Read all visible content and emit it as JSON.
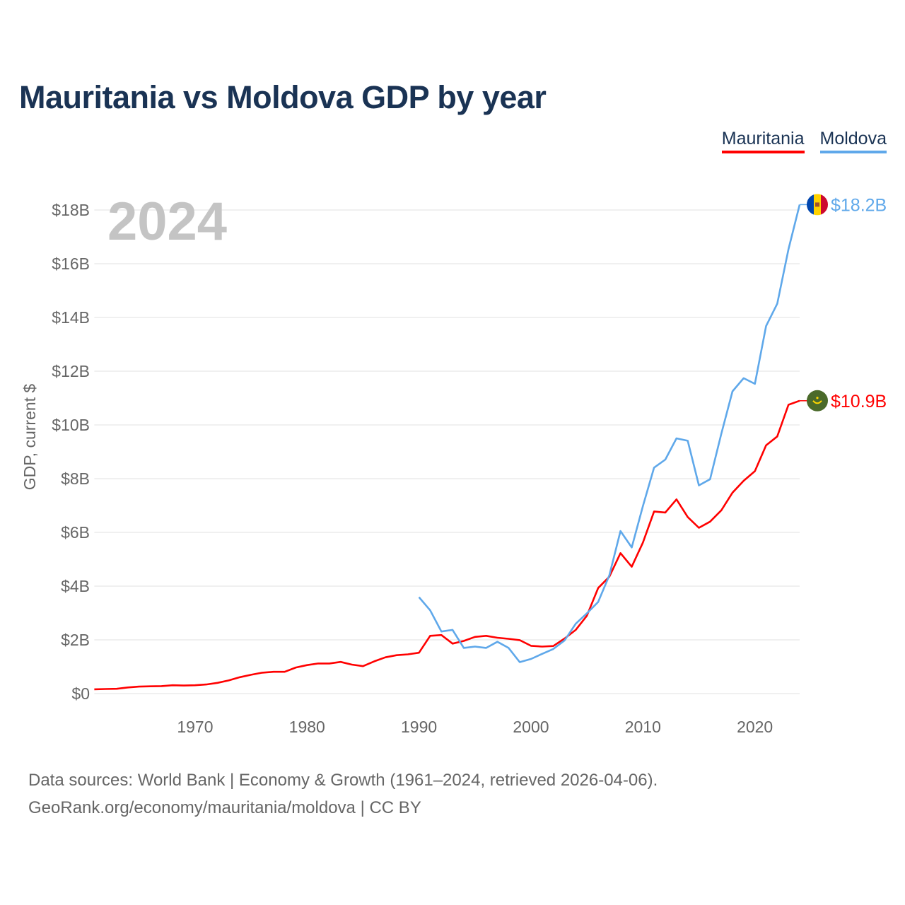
{
  "title": "Mauritania vs Moldova GDP by year",
  "source_line1": "Data sources: World Bank | Economy & Growth (1961–2024, retrieved 2026-04-06).",
  "source_line2": "GeoRank.org/economy/mauritania/moldova | CC BY",
  "chart_data": {
    "type": "line",
    "title": "Mauritania vs Moldova GDP by year",
    "ylabel": "GDP, current $",
    "xlabel": "",
    "year_watermark": "2024",
    "ylim": [
      0,
      18
    ],
    "xlim": [
      1961,
      2024
    ],
    "yticks": [
      0,
      2,
      4,
      6,
      8,
      10,
      12,
      14,
      16,
      18
    ],
    "ytick_labels": [
      "$0",
      "$2B",
      "$4B",
      "$6B",
      "$8B",
      "$10B",
      "$12B",
      "$14B",
      "$16B",
      "$18B"
    ],
    "xticks": [
      1970,
      1980,
      1990,
      2000,
      2010,
      2020
    ],
    "xtick_labels": [
      "1970",
      "1980",
      "1990",
      "2000",
      "2010",
      "2020"
    ],
    "grid": true,
    "legend_position": "top-right",
    "series": [
      {
        "name": "Mauritania",
        "color": "#ff0000",
        "flag": "mauritania-flag",
        "end_label": "$10.9B",
        "start_year": 1961,
        "values": [
          0.16,
          0.17,
          0.18,
          0.23,
          0.26,
          0.27,
          0.28,
          0.31,
          0.3,
          0.31,
          0.34,
          0.4,
          0.49,
          0.61,
          0.7,
          0.78,
          0.81,
          0.81,
          0.97,
          1.06,
          1.12,
          1.12,
          1.18,
          1.08,
          1.02,
          1.2,
          1.35,
          1.43,
          1.46,
          1.52,
          2.15,
          2.18,
          1.86,
          1.96,
          2.11,
          2.15,
          2.08,
          2.04,
          1.99,
          1.78,
          1.75,
          1.77,
          2.05,
          2.37,
          2.9,
          3.93,
          4.35,
          5.23,
          4.72,
          5.62,
          6.78,
          6.74,
          7.23,
          6.57,
          6.17,
          6.4,
          6.82,
          7.48,
          7.92,
          8.28,
          9.24,
          9.57,
          10.75,
          10.9
        ]
      },
      {
        "name": "Moldova",
        "color": "#5fa8ea",
        "flag": "moldova-flag",
        "end_label": "$18.2B",
        "start_year": 1990,
        "values": [
          3.59,
          3.1,
          2.31,
          2.37,
          1.7,
          1.75,
          1.7,
          1.93,
          1.7,
          1.17,
          1.29,
          1.48,
          1.66,
          1.98,
          2.6,
          2.99,
          3.41,
          4.4,
          6.05,
          5.44,
          6.98,
          8.41,
          8.71,
          9.5,
          9.41,
          7.75,
          7.98,
          9.67,
          11.25,
          11.74,
          11.53,
          13.68,
          14.51,
          16.54,
          18.2
        ]
      }
    ]
  }
}
